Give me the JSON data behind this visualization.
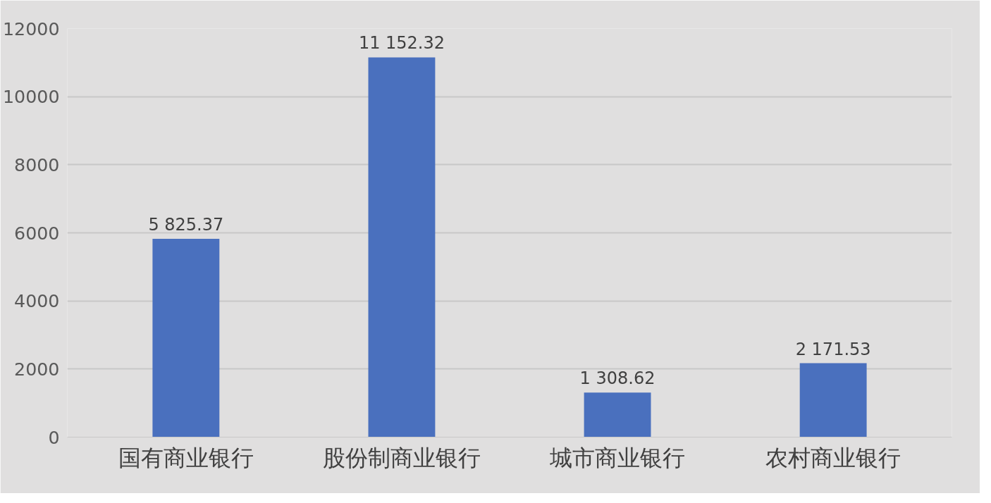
{
  "chart_data": {
    "type": "bar",
    "categories": [
      "国有商业银行",
      "股份制商业银行",
      "城市商业银行",
      "农村商业银行"
    ],
    "values": [
      5825.37,
      11152.32,
      1308.62,
      2171.53
    ],
    "value_labels": [
      "5 825.37",
      "11 152.32",
      "1 308.62",
      "2 171.53"
    ],
    "color": "#4a70be",
    "ylim": [
      0,
      12000
    ],
    "yticks": [
      0,
      2000,
      4000,
      6000,
      8000,
      10000,
      12000
    ],
    "grid": "y"
  }
}
